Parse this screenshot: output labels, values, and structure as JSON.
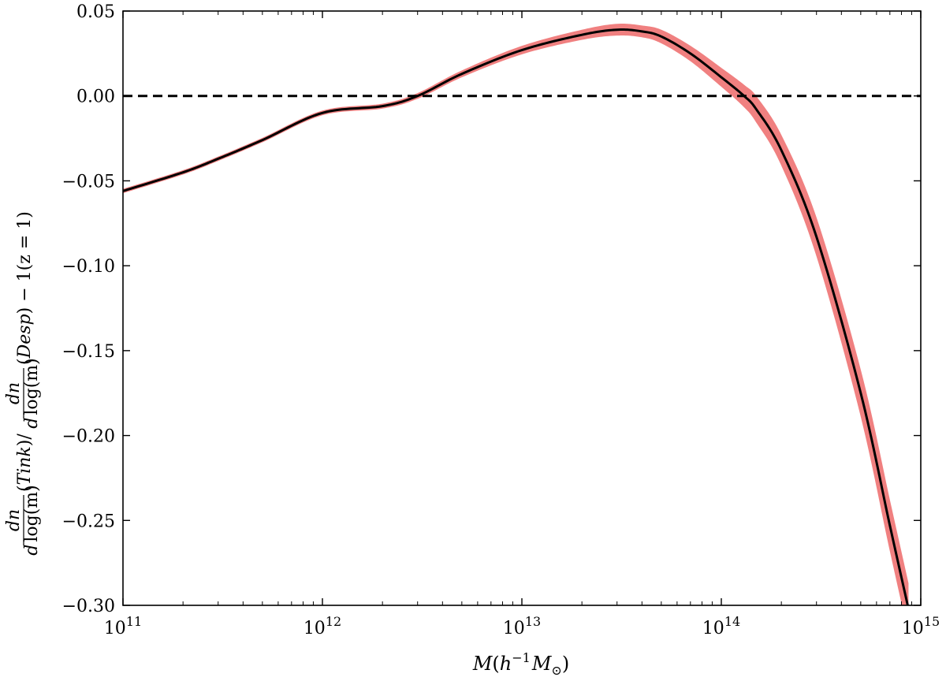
{
  "chart_data": {
    "type": "line",
    "x_scale": "log",
    "xlim": [
      100000000000.0,
      1000000000000000.0
    ],
    "ylim": [
      -0.3,
      0.05
    ],
    "x_ticks": [
      {
        "value": 100000000000.0,
        "base": "10",
        "exp": "11"
      },
      {
        "value": 1000000000000.0,
        "base": "10",
        "exp": "12"
      },
      {
        "value": 10000000000000.0,
        "base": "10",
        "exp": "13"
      },
      {
        "value": 100000000000000.0,
        "base": "10",
        "exp": "14"
      },
      {
        "value": 1000000000000000.0,
        "base": "10",
        "exp": "15"
      }
    ],
    "y_ticks": [
      {
        "value": 0.05,
        "label": "0.05"
      },
      {
        "value": 0.0,
        "label": "0.00"
      },
      {
        "value": -0.05,
        "label": "−0.05"
      },
      {
        "value": -0.1,
        "label": "−0.10"
      },
      {
        "value": -0.15,
        "label": "−0.15"
      },
      {
        "value": -0.2,
        "label": "−0.20"
      },
      {
        "value": -0.25,
        "label": "−0.25"
      },
      {
        "value": -0.3,
        "label": "−0.30"
      }
    ],
    "xlabel": {
      "M": "M",
      "h": "h",
      "exp": "−1",
      "Msun": "M",
      "sun_sub": "⊙"
    },
    "ylabel": {
      "dn": "dn",
      "d": "d",
      "log": "log",
      "m": "(m)",
      "tink": "Tink",
      "desp": "Desp",
      "z_part": "− 1(z = 1)"
    },
    "reference_line": {
      "y": 0.0,
      "style": "dashed",
      "color": "#000000"
    },
    "series": [
      {
        "style": "solid",
        "color": "#000000",
        "band_color": "#f08080",
        "x": [
          100000000000.0,
          200000000000.0,
          300000000000.0,
          500000000000.0,
          1000000000000.0,
          2000000000000.0,
          3000000000000.0,
          5000000000000.0,
          10000000000000.0,
          20000000000000.0,
          30000000000000.0,
          40000000000000.0,
          50000000000000.0,
          70000000000000.0,
          100000000000000.0,
          130000000000000.0,
          150000000000000.0,
          200000000000000.0,
          300000000000000.0,
          500000000000000.0,
          700000000000000.0,
          860000000000000.0
        ],
        "y": [
          -0.056,
          -0.045,
          -0.037,
          -0.026,
          -0.01,
          -0.006,
          0.0,
          0.013,
          0.027,
          0.036,
          0.039,
          0.038,
          0.035,
          0.025,
          0.011,
          0.0,
          -0.008,
          -0.032,
          -0.083,
          -0.175,
          -0.253,
          -0.3
        ],
        "band_halfwidth": [
          0.0008,
          0.0008,
          0.0008,
          0.0008,
          0.0009,
          0.001,
          0.0012,
          0.0015,
          0.002,
          0.0025,
          0.003,
          0.003,
          0.0035,
          0.004,
          0.005,
          0.006,
          0.007,
          0.008,
          0.01,
          0.012,
          0.013,
          0.013
        ]
      }
    ]
  }
}
